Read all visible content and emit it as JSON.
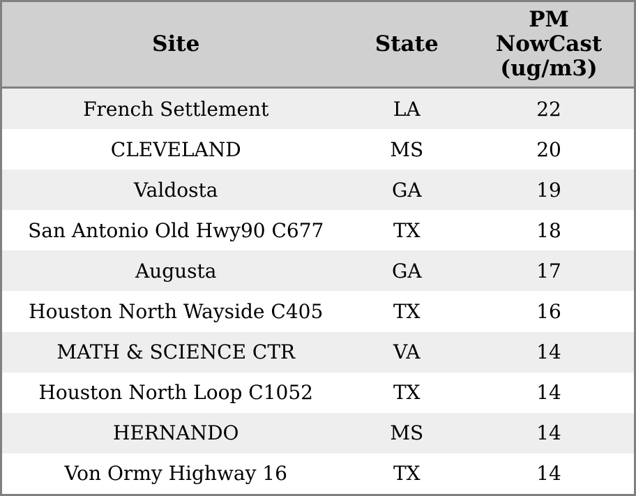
{
  "colors": {
    "header_bg": "#d0d0d0",
    "row_alt_bg": "#eeeeee",
    "row_bg": "#ffffff",
    "border": "#808080",
    "text": "#000000"
  },
  "table": {
    "columns": [
      {
        "label": "Site"
      },
      {
        "label": "State"
      },
      {
        "label": "PM\nNowCast\n(ug/m3)"
      }
    ],
    "rows": [
      {
        "site": "French Settlement",
        "state": "LA",
        "pm_nowcast": "22"
      },
      {
        "site": "CLEVELAND",
        "state": "MS",
        "pm_nowcast": "20"
      },
      {
        "site": "Valdosta",
        "state": "GA",
        "pm_nowcast": "19"
      },
      {
        "site": "San Antonio Old Hwy90 C677",
        "state": "TX",
        "pm_nowcast": "18"
      },
      {
        "site": "Augusta",
        "state": "GA",
        "pm_nowcast": "17"
      },
      {
        "site": "Houston North Wayside C405",
        "state": "TX",
        "pm_nowcast": "16"
      },
      {
        "site": "MATH & SCIENCE CTR",
        "state": "VA",
        "pm_nowcast": "14"
      },
      {
        "site": "Houston North Loop C1052",
        "state": "TX",
        "pm_nowcast": "14"
      },
      {
        "site": "HERNANDO",
        "state": "MS",
        "pm_nowcast": "14"
      },
      {
        "site": "Von Ormy Highway 16",
        "state": "TX",
        "pm_nowcast": "14"
      }
    ]
  },
  "chart_data": {
    "type": "table",
    "title": "",
    "columns": [
      "Site",
      "State",
      "PM NowCast (ug/m3)"
    ],
    "rows": [
      [
        "French Settlement",
        "LA",
        22
      ],
      [
        "CLEVELAND",
        "MS",
        20
      ],
      [
        "Valdosta",
        "GA",
        19
      ],
      [
        "San Antonio Old Hwy90 C677",
        "TX",
        18
      ],
      [
        "Augusta",
        "GA",
        17
      ],
      [
        "Houston North Wayside C405",
        "TX",
        16
      ],
      [
        "MATH & SCIENCE CTR",
        "VA",
        14
      ],
      [
        "Houston North Loop C1052",
        "TX",
        14
      ],
      [
        "HERNANDO",
        "MS",
        14
      ],
      [
        "Von Ormy Highway 16",
        "TX",
        14
      ]
    ]
  }
}
